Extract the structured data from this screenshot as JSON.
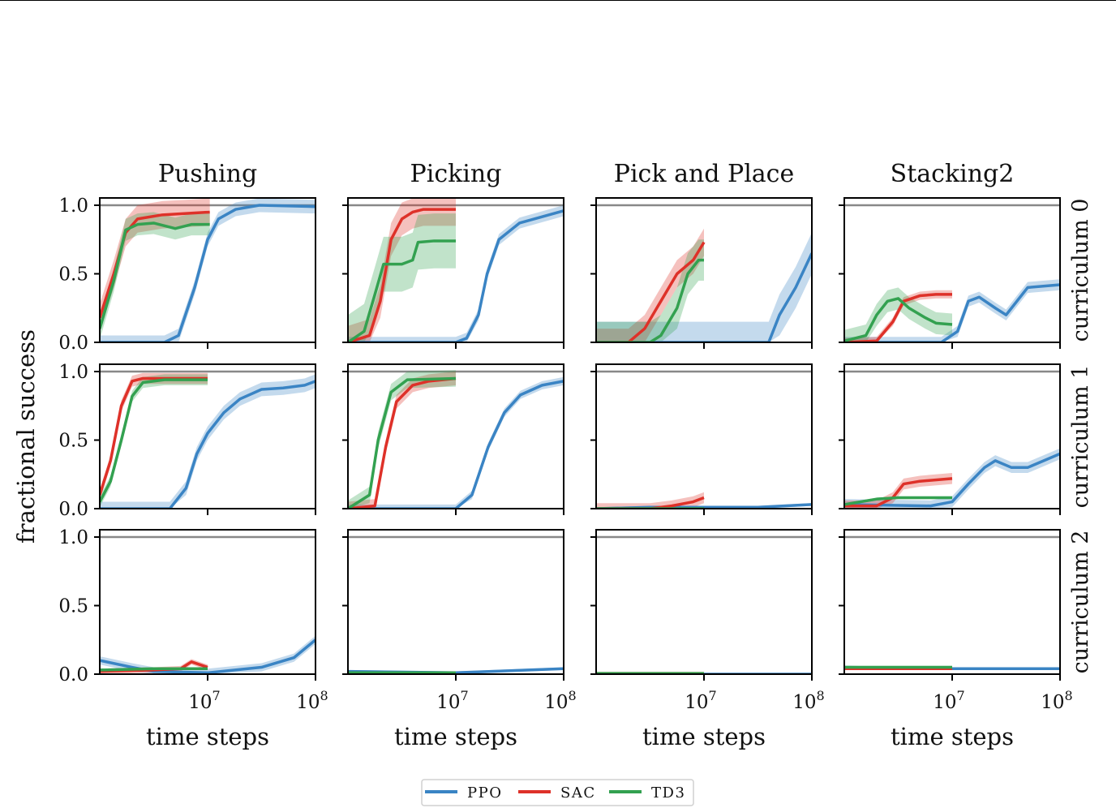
{
  "chart_data": {
    "type": "line",
    "ylabel": "fractional success",
    "xlabel": "time steps",
    "xscale": "log",
    "xlim": [
      1000000,
      100000000
    ],
    "ylim": [
      0,
      1.05
    ],
    "reference_line": 1.0,
    "yticks": [
      "0.0",
      "0.5",
      "1.0"
    ],
    "ytick_values": [
      0,
      0.5,
      1.0
    ],
    "xticks": [
      {
        "base": "10",
        "exp": "7",
        "log10": 7
      },
      {
        "base": "10",
        "exp": "8",
        "log10": 8
      }
    ],
    "columns": [
      "Pushing",
      "Picking",
      "Pick and Place",
      "Stacking2"
    ],
    "rows": [
      "curriculum 0",
      "curriculum 1",
      "curriculum 2"
    ],
    "legend": {
      "placement": "bottom-center",
      "entries": [
        "PPO",
        "SAC",
        "TD3"
      ]
    },
    "colors": {
      "PPO": "#3a84c4",
      "SAC": "#de3129",
      "TD3": "#33a150"
    },
    "note": "series x values are log10(time steps)",
    "panels": [
      [
        {
          "PPO": {
            "spread": 0.05,
            "x": [
              6.0,
              6.6,
              6.73,
              6.88,
              7.0,
              7.1,
              7.26,
              7.48,
              8.0
            ],
            "y": [
              0,
              0,
              0.05,
              0.4,
              0.75,
              0.9,
              0.97,
              1.0,
              0.99
            ]
          },
          "SAC": {
            "spread": 0.1,
            "x": [
              6.0,
              6.13,
              6.24,
              6.35,
              6.58,
              6.8,
              7.02
            ],
            "y": [
              0.18,
              0.5,
              0.8,
              0.9,
              0.93,
              0.94,
              0.95
            ]
          },
          "TD3": {
            "spread": 0.08,
            "x": [
              6.0,
              6.13,
              6.24,
              6.35,
              6.5,
              6.7,
              6.85,
              7.02
            ],
            "y": [
              0.1,
              0.45,
              0.82,
              0.86,
              0.87,
              0.83,
              0.86,
              0.86
            ]
          }
        },
        {
          "PPO": {
            "spread": 0.04,
            "x": [
              6.0,
              7.0,
              7.1,
              7.21,
              7.29,
              7.4,
              7.59,
              8.0
            ],
            "y": [
              0,
              0,
              0.03,
              0.2,
              0.5,
              0.75,
              0.87,
              0.96
            ]
          },
          "SAC": {
            "spread": 0.12,
            "x": [
              6.0,
              6.2,
              6.3,
              6.4,
              6.5,
              6.6,
              6.7,
              7.0
            ],
            "y": [
              0,
              0.05,
              0.3,
              0.75,
              0.9,
              0.95,
              0.97,
              0.97
            ]
          },
          "TD3": {
            "spread": 0.2,
            "x": [
              6.0,
              6.15,
              6.25,
              6.33,
              6.5,
              6.6,
              6.65,
              6.8,
              7.0
            ],
            "y": [
              0,
              0.08,
              0.35,
              0.57,
              0.57,
              0.6,
              0.73,
              0.74,
              0.74
            ]
          }
        },
        {
          "PPO": {
            "spread": 0.15,
            "x": [
              6.0,
              7.6,
              7.7,
              7.85,
              8.0
            ],
            "y": [
              0,
              0,
              0.2,
              0.4,
              0.65
            ]
          },
          "SAC": {
            "spread": 0.1,
            "x": [
              6.0,
              6.3,
              6.45,
              6.6,
              6.75,
              6.9,
              7.0
            ],
            "y": [
              0,
              0,
              0.1,
              0.3,
              0.5,
              0.6,
              0.73
            ]
          },
          "TD3": {
            "spread": 0.15,
            "x": [
              6.0,
              6.5,
              6.6,
              6.75,
              6.85,
              6.95,
              7.0
            ],
            "y": [
              0,
              0,
              0.05,
              0.25,
              0.5,
              0.6,
              0.6
            ]
          }
        },
        {
          "PPO": {
            "spread": 0.04,
            "x": [
              6.0,
              6.9,
              7.05,
              7.15,
              7.25,
              7.4,
              7.5,
              7.6,
              7.7,
              8.0
            ],
            "y": [
              0,
              0,
              0.08,
              0.3,
              0.33,
              0.25,
              0.2,
              0.3,
              0.4,
              0.42
            ]
          },
          "SAC": {
            "spread": 0.03,
            "x": [
              6.0,
              6.3,
              6.45,
              6.55,
              6.7,
              6.85,
              7.0
            ],
            "y": [
              0,
              0.01,
              0.15,
              0.3,
              0.34,
              0.35,
              0.35
            ]
          },
          "TD3": {
            "spread": 0.08,
            "x": [
              6.0,
              6.2,
              6.3,
              6.4,
              6.5,
              6.6,
              6.75,
              6.85,
              7.0
            ],
            "y": [
              0.01,
              0.05,
              0.2,
              0.3,
              0.32,
              0.25,
              0.18,
              0.14,
              0.13
            ]
          }
        }
      ],
      [
        {
          "PPO": {
            "spread": 0.05,
            "x": [
              6.0,
              6.65,
              6.8,
              6.9,
              7.0,
              7.15,
              7.3,
              7.5,
              7.7,
              7.9,
              8.0
            ],
            "y": [
              0,
              0,
              0.15,
              0.4,
              0.55,
              0.7,
              0.8,
              0.87,
              0.88,
              0.9,
              0.93
            ]
          },
          "SAC": {
            "spread": 0.04,
            "x": [
              6.0,
              6.1,
              6.2,
              6.3,
              6.4,
              7.0
            ],
            "y": [
              0.1,
              0.35,
              0.75,
              0.93,
              0.95,
              0.95
            ]
          },
          "TD3": {
            "spread": 0.04,
            "x": [
              6.0,
              6.1,
              6.2,
              6.3,
              6.4,
              6.6,
              7.0
            ],
            "y": [
              0.05,
              0.2,
              0.5,
              0.82,
              0.92,
              0.94,
              0.94
            ]
          }
        },
        {
          "PPO": {
            "spread": 0.03,
            "x": [
              6.0,
              7.0,
              7.15,
              7.3,
              7.45,
              7.6,
              7.8,
              8.0
            ],
            "y": [
              0,
              0,
              0.1,
              0.45,
              0.7,
              0.83,
              0.9,
              0.93
            ]
          },
          "SAC": {
            "spread": 0.05,
            "x": [
              6.0,
              6.25,
              6.35,
              6.45,
              6.6,
              6.75,
              7.0
            ],
            "y": [
              0,
              0.02,
              0.45,
              0.78,
              0.9,
              0.93,
              0.95
            ]
          },
          "TD3": {
            "spread": 0.06,
            "x": [
              6.0,
              6.2,
              6.28,
              6.4,
              6.55,
              7.0
            ],
            "y": [
              0,
              0.1,
              0.5,
              0.85,
              0.94,
              0.95
            ]
          }
        },
        {
          "PPO": {
            "spread": 0.01,
            "x": [
              6.0,
              6.5,
              7.0,
              7.5,
              8.0
            ],
            "y": [
              0,
              0.01,
              0.01,
              0.01,
              0.03
            ]
          },
          "SAC": {
            "spread": 0.04,
            "x": [
              6.0,
              6.5,
              6.7,
              6.9,
              7.0
            ],
            "y": [
              0,
              0,
              0.02,
              0.05,
              0.08
            ]
          },
          "TD3": {
            "spread": 0.0,
            "x": [
              6.0,
              7.0
            ],
            "y": [
              0,
              0
            ]
          }
        },
        {
          "PPO": {
            "spread": 0.04,
            "x": [
              6.0,
              6.8,
              7.0,
              7.15,
              7.3,
              7.4,
              7.55,
              7.7,
              8.0
            ],
            "y": [
              0.03,
              0.02,
              0.05,
              0.18,
              0.3,
              0.35,
              0.3,
              0.3,
              0.4
            ]
          },
          "SAC": {
            "spread": 0.04,
            "x": [
              6.0,
              6.3,
              6.45,
              6.55,
              6.7,
              7.0
            ],
            "y": [
              0.02,
              0.02,
              0.08,
              0.18,
              0.2,
              0.22
            ]
          },
          "TD3": {
            "spread": 0.01,
            "x": [
              6.0,
              6.3,
              6.5,
              7.0
            ],
            "y": [
              0.03,
              0.07,
              0.08,
              0.08
            ]
          }
        }
      ],
      [
        {
          "PPO": {
            "spread": 0.03,
            "x": [
              6.0,
              6.3,
              6.5,
              7.0,
              7.5,
              7.8,
              8.0
            ],
            "y": [
              0.1,
              0.05,
              0.02,
              0.01,
              0.05,
              0.12,
              0.25
            ]
          },
          "SAC": {
            "spread": 0.02,
            "x": [
              6.0,
              6.5,
              6.75,
              6.85,
              7.0
            ],
            "y": [
              0.02,
              0.03,
              0.04,
              0.09,
              0.05
            ]
          },
          "TD3": {
            "spread": 0.01,
            "x": [
              6.0,
              6.5,
              7.0
            ],
            "y": [
              0.03,
              0.04,
              0.04
            ]
          }
        },
        {
          "PPO": {
            "spread": 0.01,
            "x": [
              6.0,
              7.0,
              8.0
            ],
            "y": [
              0.02,
              0.01,
              0.04
            ]
          },
          "SAC": {
            "spread": 0.0,
            "x": [
              6.0,
              7.0
            ],
            "y": [
              0.01,
              0.01
            ]
          },
          "TD3": {
            "spread": 0.0,
            "x": [
              6.0,
              7.0
            ],
            "y": [
              0.01,
              0.01
            ]
          }
        },
        {
          "PPO": {
            "spread": 0.0,
            "x": [
              6.0,
              8.0
            ],
            "y": [
              0,
              0
            ]
          },
          "SAC": {
            "spread": 0.0,
            "x": [
              6.0,
              7.0
            ],
            "y": [
              0.005,
              0.005
            ]
          },
          "TD3": {
            "spread": 0.0,
            "x": [
              6.0,
              7.0
            ],
            "y": [
              0.005,
              0.005
            ]
          }
        },
        {
          "PPO": {
            "spread": 0.01,
            "x": [
              6.0,
              7.0,
              8.0
            ],
            "y": [
              0.05,
              0.04,
              0.04
            ]
          },
          "SAC": {
            "spread": 0.01,
            "x": [
              6.0,
              7.0
            ],
            "y": [
              0.04,
              0.04
            ]
          },
          "TD3": {
            "spread": 0.01,
            "x": [
              6.0,
              7.0
            ],
            "y": [
              0.05,
              0.05
            ]
          }
        }
      ]
    ]
  }
}
